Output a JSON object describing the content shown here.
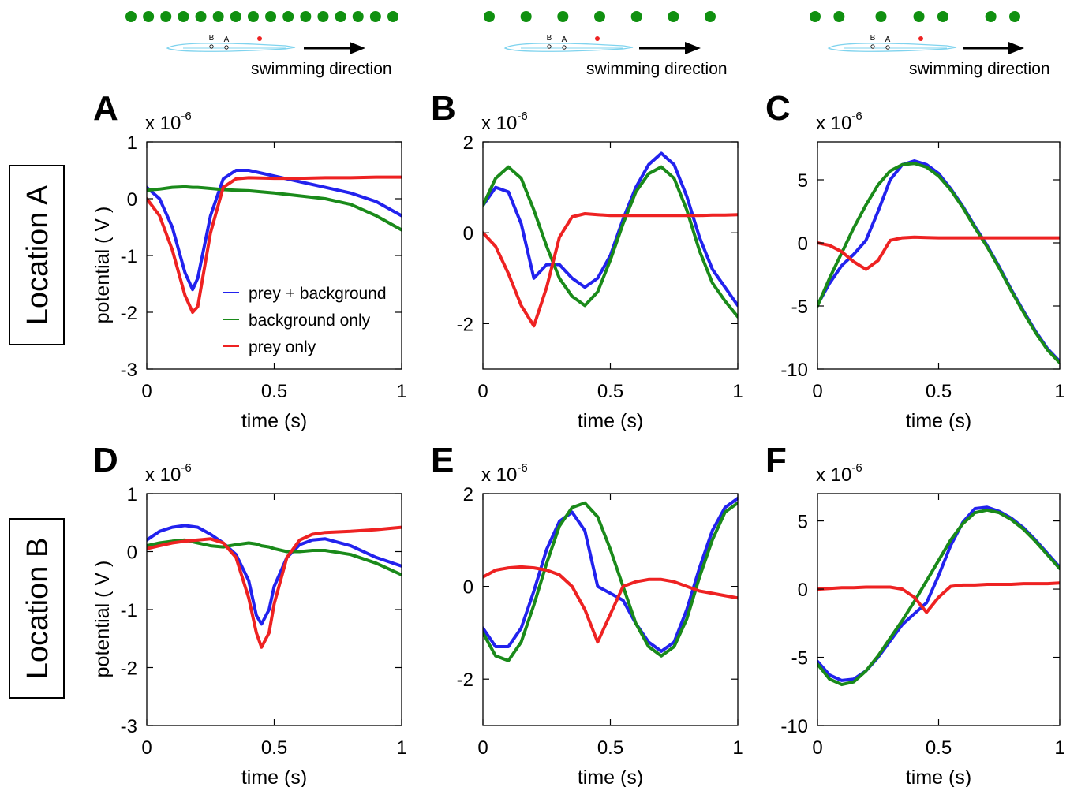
{
  "scale_label": "x 10",
  "scale_exponent": "-6",
  "swimming_label": "swimming direction",
  "electrode_labels": {
    "b": "B",
    "a": "A"
  },
  "row_labels": [
    "Location A",
    "Location B"
  ],
  "legend": [
    {
      "label": "prey + background",
      "color": "#2222ee"
    },
    {
      "label": "background only",
      "color": "#1a8a1a"
    },
    {
      "label": "prey only",
      "color": "#ee2222"
    }
  ],
  "colors": {
    "prey_background": "#2222ee",
    "background_only": "#1a8a1a",
    "prey_only": "#ee2222",
    "dots": "#109010",
    "fish": "#7fd3ee"
  },
  "top_diagrams": [
    {
      "dots": [
        0.0,
        0.0667,
        0.1333,
        0.2,
        0.2667,
        0.3333,
        0.4,
        0.4667,
        0.5333,
        0.6,
        0.6667,
        0.7333,
        0.8,
        0.8667,
        0.9333,
        1.0
      ]
    },
    {
      "dots": [
        0.0,
        0.1667,
        0.3333,
        0.5,
        0.6667,
        0.8333,
        1.0
      ]
    },
    {
      "dots": [
        0.0,
        0.12,
        0.33,
        0.52,
        0.64,
        0.88,
        1.0
      ]
    }
  ],
  "chart_data": [
    {
      "panel": "A",
      "type": "line",
      "xlabel": "time (s)",
      "ylabel": "potential ( V )",
      "xlim": [
        0,
        1
      ],
      "ylim": [
        -3,
        1
      ],
      "xticks": [
        "0",
        "0.5",
        "1"
      ],
      "yticks": [
        "1",
        "0",
        "-1",
        "-2",
        "-3"
      ],
      "x": [
        0,
        0.05,
        0.1,
        0.15,
        0.18,
        0.2,
        0.25,
        0.3,
        0.35,
        0.4,
        0.5,
        0.6,
        0.7,
        0.8,
        0.9,
        1
      ],
      "series": [
        {
          "name": "prey + background",
          "values": [
            0.2,
            0.0,
            -0.5,
            -1.3,
            -1.6,
            -1.4,
            -0.3,
            0.35,
            0.5,
            0.5,
            0.4,
            0.3,
            0.2,
            0.1,
            -0.05,
            -0.3
          ]
        },
        {
          "name": "background only",
          "values": [
            0.15,
            0.17,
            0.2,
            0.21,
            0.2,
            0.2,
            0.18,
            0.16,
            0.15,
            0.14,
            0.1,
            0.05,
            0.0,
            -0.1,
            -0.3,
            -0.55
          ]
        },
        {
          "name": "prey only",
          "values": [
            0.0,
            -0.3,
            -0.9,
            -1.7,
            -2.0,
            -1.9,
            -0.6,
            0.2,
            0.35,
            0.37,
            0.36,
            0.36,
            0.37,
            0.37,
            0.38,
            0.38
          ]
        }
      ]
    },
    {
      "panel": "B",
      "type": "line",
      "xlabel": "time (s)",
      "ylabel": "",
      "xlim": [
        0,
        1
      ],
      "ylim": [
        -3,
        2
      ],
      "xticks": [
        "0",
        "0.5",
        "1"
      ],
      "yticks": [
        "2",
        "0",
        "-2"
      ],
      "x": [
        0,
        0.05,
        0.1,
        0.15,
        0.2,
        0.25,
        0.3,
        0.35,
        0.4,
        0.45,
        0.5,
        0.55,
        0.6,
        0.65,
        0.7,
        0.75,
        0.8,
        0.85,
        0.9,
        0.95,
        1
      ],
      "series": [
        {
          "name": "prey + background",
          "values": [
            0.6,
            1.0,
            0.9,
            0.2,
            -1.0,
            -0.7,
            -0.7,
            -1.0,
            -1.2,
            -1.0,
            -0.5,
            0.3,
            1.0,
            1.5,
            1.75,
            1.5,
            0.8,
            -0.1,
            -0.8,
            -1.2,
            -1.6
          ]
        },
        {
          "name": "background only",
          "values": [
            0.6,
            1.2,
            1.45,
            1.2,
            0.5,
            -0.3,
            -1.0,
            -1.4,
            -1.6,
            -1.3,
            -0.6,
            0.2,
            0.9,
            1.3,
            1.45,
            1.2,
            0.5,
            -0.4,
            -1.1,
            -1.5,
            -1.85
          ]
        },
        {
          "name": "prey only",
          "values": [
            0.0,
            -0.3,
            -0.9,
            -1.6,
            -2.05,
            -1.2,
            -0.1,
            0.35,
            0.42,
            0.4,
            0.38,
            0.38,
            0.38,
            0.38,
            0.38,
            0.38,
            0.38,
            0.38,
            0.39,
            0.39,
            0.4
          ]
        }
      ]
    },
    {
      "panel": "C",
      "type": "line",
      "xlabel": "time (s)",
      "ylabel": "",
      "xlim": [
        0,
        1
      ],
      "ylim": [
        -10,
        8
      ],
      "xticks": [
        "0",
        "0.5",
        "1"
      ],
      "yticks": [
        "5",
        "0",
        "-5",
        "-10"
      ],
      "x": [
        0,
        0.05,
        0.1,
        0.15,
        0.2,
        0.25,
        0.3,
        0.35,
        0.4,
        0.45,
        0.5,
        0.55,
        0.6,
        0.65,
        0.7,
        0.75,
        0.8,
        0.85,
        0.9,
        0.95,
        1
      ],
      "series": [
        {
          "name": "prey + background",
          "values": [
            -4.9,
            -3.2,
            -1.8,
            -0.9,
            0.2,
            2.5,
            5.0,
            6.2,
            6.5,
            6.2,
            5.5,
            4.3,
            2.9,
            1.3,
            -0.2,
            -1.9,
            -3.7,
            -5.4,
            -7.0,
            -8.4,
            -9.4
          ]
        },
        {
          "name": "background only",
          "values": [
            -5.0,
            -2.8,
            -0.8,
            1.2,
            3.0,
            4.6,
            5.7,
            6.2,
            6.3,
            6.0,
            5.3,
            4.2,
            2.8,
            1.2,
            -0.3,
            -2.0,
            -3.8,
            -5.5,
            -7.1,
            -8.5,
            -9.5
          ]
        },
        {
          "name": "prey only",
          "values": [
            0.0,
            -0.2,
            -0.7,
            -1.5,
            -2.1,
            -1.4,
            0.2,
            0.4,
            0.45,
            0.42,
            0.4,
            0.4,
            0.4,
            0.4,
            0.4,
            0.4,
            0.4,
            0.4,
            0.4,
            0.4,
            0.4
          ]
        }
      ]
    },
    {
      "panel": "D",
      "type": "line",
      "xlabel": "time (s)",
      "ylabel": "potential ( V )",
      "xlim": [
        0,
        1
      ],
      "ylim": [
        -3,
        1
      ],
      "xticks": [
        "0",
        "0.5",
        "1"
      ],
      "yticks": [
        "1",
        "0",
        "-1",
        "-2",
        "-3"
      ],
      "x": [
        0,
        0.05,
        0.1,
        0.15,
        0.2,
        0.25,
        0.3,
        0.35,
        0.4,
        0.43,
        0.45,
        0.48,
        0.5,
        0.55,
        0.6,
        0.65,
        0.7,
        0.8,
        0.9,
        1
      ],
      "series": [
        {
          "name": "prey + background",
          "values": [
            0.2,
            0.35,
            0.42,
            0.45,
            0.42,
            0.3,
            0.15,
            -0.05,
            -0.5,
            -1.1,
            -1.25,
            -1.0,
            -0.6,
            -0.1,
            0.12,
            0.2,
            0.22,
            0.1,
            -0.1,
            -0.25
          ]
        },
        {
          "name": "background only",
          "values": [
            0.1,
            0.15,
            0.18,
            0.2,
            0.15,
            0.1,
            0.08,
            0.12,
            0.15,
            0.13,
            0.1,
            0.08,
            0.05,
            0.0,
            0.0,
            0.02,
            0.02,
            -0.05,
            -0.2,
            -0.4
          ]
        },
        {
          "name": "prey only",
          "values": [
            0.05,
            0.1,
            0.15,
            0.18,
            0.2,
            0.22,
            0.15,
            -0.1,
            -0.8,
            -1.4,
            -1.65,
            -1.4,
            -0.9,
            -0.1,
            0.2,
            0.3,
            0.33,
            0.35,
            0.38,
            0.42
          ]
        }
      ]
    },
    {
      "panel": "E",
      "type": "line",
      "xlabel": "time (s)",
      "ylabel": "",
      "xlim": [
        0,
        1
      ],
      "ylim": [
        -3,
        2
      ],
      "xticks": [
        "0",
        "0.5",
        "1"
      ],
      "yticks": [
        "2",
        "0",
        "-2"
      ],
      "x": [
        0,
        0.05,
        0.1,
        0.15,
        0.2,
        0.25,
        0.3,
        0.35,
        0.4,
        0.45,
        0.5,
        0.55,
        0.6,
        0.65,
        0.7,
        0.75,
        0.8,
        0.85,
        0.9,
        0.95,
        1
      ],
      "series": [
        {
          "name": "prey + background",
          "values": [
            -0.9,
            -1.3,
            -1.3,
            -0.9,
            -0.1,
            0.8,
            1.4,
            1.6,
            1.2,
            0.0,
            -0.15,
            -0.3,
            -0.8,
            -1.2,
            -1.4,
            -1.2,
            -0.5,
            0.4,
            1.2,
            1.7,
            1.9
          ]
        },
        {
          "name": "background only",
          "values": [
            -1.0,
            -1.5,
            -1.6,
            -1.2,
            -0.4,
            0.5,
            1.3,
            1.7,
            1.8,
            1.5,
            0.8,
            0.0,
            -0.8,
            -1.3,
            -1.5,
            -1.3,
            -0.7,
            0.2,
            1.0,
            1.6,
            1.8
          ]
        },
        {
          "name": "prey only",
          "values": [
            0.2,
            0.35,
            0.4,
            0.42,
            0.4,
            0.35,
            0.25,
            0.0,
            -0.5,
            -1.2,
            -0.6,
            0.0,
            0.1,
            0.15,
            0.15,
            0.1,
            0.0,
            -0.1,
            -0.15,
            -0.2,
            -0.25
          ]
        }
      ]
    },
    {
      "panel": "F",
      "type": "line",
      "xlabel": "time (s)",
      "ylabel": "",
      "xlim": [
        0,
        1
      ],
      "ylim": [
        -10,
        7
      ],
      "xticks": [
        "0",
        "0.5",
        "1"
      ],
      "yticks": [
        "5",
        "0",
        "-5",
        "-10"
      ],
      "x": [
        0,
        0.05,
        0.1,
        0.15,
        0.2,
        0.25,
        0.3,
        0.35,
        0.4,
        0.45,
        0.5,
        0.55,
        0.6,
        0.65,
        0.7,
        0.75,
        0.8,
        0.85,
        0.9,
        0.95,
        1
      ],
      "series": [
        {
          "name": "prey + background",
          "values": [
            -5.3,
            -6.3,
            -6.7,
            -6.6,
            -6.0,
            -5.0,
            -3.8,
            -2.6,
            -1.8,
            -1.0,
            1.0,
            3.2,
            4.9,
            5.9,
            6.0,
            5.7,
            5.2,
            4.5,
            3.6,
            2.6,
            1.6
          ]
        },
        {
          "name": "background only",
          "values": [
            -5.5,
            -6.6,
            -7.0,
            -6.8,
            -6.0,
            -4.9,
            -3.6,
            -2.3,
            -0.9,
            0.6,
            2.1,
            3.6,
            4.8,
            5.6,
            5.8,
            5.6,
            5.1,
            4.4,
            3.5,
            2.5,
            1.5
          ]
        },
        {
          "name": "prey only",
          "values": [
            0.0,
            0.05,
            0.1,
            0.1,
            0.15,
            0.15,
            0.15,
            0.0,
            -0.6,
            -1.7,
            -0.6,
            0.2,
            0.3,
            0.3,
            0.35,
            0.35,
            0.35,
            0.4,
            0.4,
            0.4,
            0.45
          ]
        }
      ]
    }
  ]
}
